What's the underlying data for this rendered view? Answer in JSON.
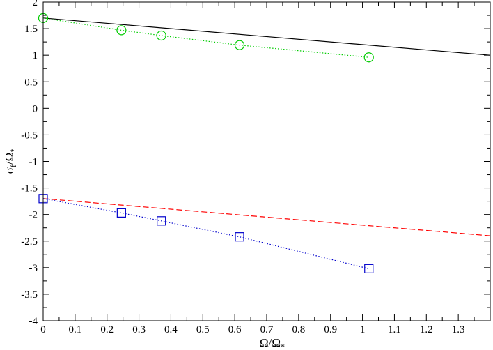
{
  "chart_data": {
    "type": "line",
    "xlabel_main": "Ω/Ω",
    "xlabel_sub": "*",
    "ylabel_main": "σ",
    "ylabel_sub1": "f",
    "ylabel_rest": "/Ω",
    "ylabel_sub2": "*",
    "xlim": [
      0,
      1.4
    ],
    "ylim": [
      -4,
      2
    ],
    "xticks": [
      "0",
      "0.1",
      "0.2",
      "0.3",
      "0.4",
      "0.5",
      "0.6",
      "0.7",
      "0.8",
      "0.9",
      "1",
      "1.1",
      "1.2",
      "1.3"
    ],
    "yticks": [
      "2",
      "1.5",
      "1",
      "0.5",
      "0",
      "-0.5",
      "-1",
      "-1.5",
      "-2",
      "-2.5",
      "-3",
      "-3.5",
      "-4"
    ],
    "series": [
      {
        "style": "solid",
        "color": "#000000",
        "marker": "none",
        "x": [
          0,
          1.4
        ],
        "y": [
          1.7,
          1.0
        ]
      },
      {
        "style": "dashed",
        "color": "#ff0000",
        "marker": "none",
        "x": [
          0,
          1.4
        ],
        "y": [
          -1.7,
          -2.4
        ]
      },
      {
        "style": "dotted",
        "color": "#00cc00",
        "marker": "circle",
        "x": [
          0,
          0.245,
          0.37,
          0.615,
          1.02
        ],
        "y": [
          1.7,
          1.47,
          1.37,
          1.19,
          0.96
        ]
      },
      {
        "style": "dotted",
        "color": "#0000cc",
        "marker": "square",
        "x": [
          0,
          0.245,
          0.37,
          0.615,
          1.02
        ],
        "y": [
          -1.7,
          -1.97,
          -2.12,
          -2.42,
          -3.02
        ]
      }
    ]
  }
}
